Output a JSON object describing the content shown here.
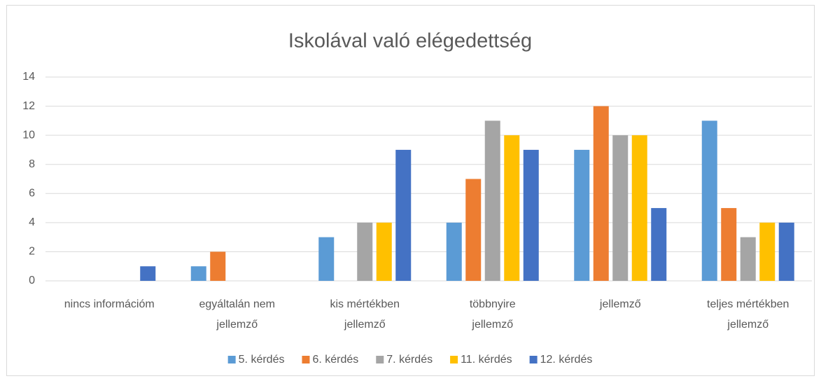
{
  "chart_data": {
    "type": "bar",
    "title": "Iskolával való elégedettség",
    "categories": [
      "nincs információm",
      "egyáltalán nem jellemző",
      "kis mértékben jellemző",
      "többnyire jellemző",
      "jellemző",
      "teljes mértékben jellemző"
    ],
    "series": [
      {
        "name": "5. kérdés",
        "color": "#5b9bd5",
        "values": [
          0,
          1,
          3,
          4,
          9,
          11
        ]
      },
      {
        "name": "6. kérdés",
        "color": "#ed7d31",
        "values": [
          0,
          2,
          0,
          7,
          12,
          5
        ]
      },
      {
        "name": "7. kérdés",
        "color": "#a5a5a5",
        "values": [
          0,
          0,
          4,
          11,
          10,
          3
        ]
      },
      {
        "name": "11. kérdés",
        "color": "#ffc000",
        "values": [
          0,
          0,
          4,
          10,
          10,
          4
        ]
      },
      {
        "name": "12. kérdés",
        "color": "#4472c4",
        "values": [
          1,
          0,
          9,
          9,
          5,
          4
        ]
      }
    ],
    "ylim": [
      0,
      14
    ],
    "yticks": [
      0,
      2,
      4,
      6,
      8,
      10,
      12,
      14
    ],
    "grid": true,
    "legend": "bottom"
  }
}
